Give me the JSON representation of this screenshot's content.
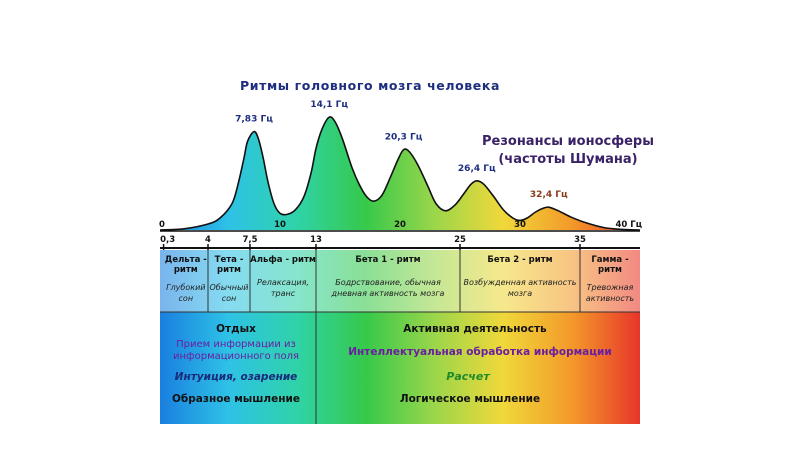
{
  "title": "Ритмы головного мозга человека",
  "schumann_label_line1": "Резонансы ионосферы",
  "schumann_label_line2": "(частоты Шумана)",
  "colors": {
    "spectrum": [
      "#1a7fe0",
      "#2ec2e6",
      "#2fd3a8",
      "#36c94a",
      "#9ad64a",
      "#f0d83a",
      "#f39a2a",
      "#e8352a"
    ],
    "peak_label": "#1f2f80",
    "last_peak_label": "#8a3b1a",
    "schumann_label": "#3a2266",
    "purple_text": "#6a1ea0",
    "green_text": "#1e8a2a"
  },
  "chart_data": {
    "type": "area",
    "title": "Ритмы головного мозга человека",
    "xlim": [
      0,
      40
    ],
    "x_axis_top": {
      "ticks": [
        0,
        10,
        20,
        30
      ],
      "end_label": "40 Гц"
    },
    "peaks": [
      {
        "freq": 7.83,
        "label": "7,83 Гц"
      },
      {
        "freq": 14.1,
        "label": "14,1 Гц"
      },
      {
        "freq": 20.3,
        "label": "20,3 Гц"
      },
      {
        "freq": 26.4,
        "label": "26,4 Гц"
      },
      {
        "freq": 32.4,
        "label": "32,4 Гц"
      }
    ],
    "curve": {
      "x": [
        0,
        2,
        4,
        5,
        6,
        6.5,
        7,
        7.3,
        7.83,
        8.2,
        8.6,
        9,
        9.5,
        10,
        10.6,
        11.3,
        12,
        12.6,
        13,
        13.5,
        14.1,
        14.6,
        15.2,
        16,
        16.6,
        17.2,
        17.8,
        18.5,
        19.2,
        19.8,
        20.3,
        20.8,
        21.5,
        22.3,
        23,
        23.8,
        24.6,
        25.3,
        25.9,
        26.4,
        27,
        27.8,
        28.6,
        29.4,
        30,
        30.6,
        31.3,
        31.9,
        32.4,
        33.2,
        34.2,
        35.5,
        37,
        38.5,
        40
      ],
      "y": [
        0,
        0.01,
        0.05,
        0.1,
        0.22,
        0.38,
        0.6,
        0.74,
        0.82,
        0.76,
        0.6,
        0.4,
        0.22,
        0.14,
        0.13,
        0.17,
        0.28,
        0.48,
        0.68,
        0.84,
        0.94,
        0.9,
        0.76,
        0.52,
        0.38,
        0.28,
        0.24,
        0.29,
        0.44,
        0.58,
        0.67,
        0.65,
        0.54,
        0.37,
        0.22,
        0.16,
        0.21,
        0.3,
        0.38,
        0.41,
        0.38,
        0.28,
        0.17,
        0.1,
        0.08,
        0.1,
        0.15,
        0.18,
        0.19,
        0.16,
        0.11,
        0.06,
        0.02,
        0.005,
        0
      ]
    },
    "band_boundaries": [
      0.3,
      4,
      7.5,
      13,
      25,
      35
    ],
    "bands": [
      {
        "from": 0.3,
        "to": 4,
        "name": "Дельта - ритм",
        "desc": "Глубокий сон"
      },
      {
        "from": 4,
        "to": 7.5,
        "name": "Тета - ритм",
        "desc": "Обычный сон"
      },
      {
        "from": 7.5,
        "to": 13,
        "name": "Альфа - ритм",
        "desc": "Релаксация, транс"
      },
      {
        "from": 13,
        "to": 25,
        "name": "Бета 1 - ритм",
        "desc": "Бодрствование, обычная дневная активность мозга"
      },
      {
        "from": 25,
        "to": 35,
        "name": "Бета 2 - ритм",
        "desc": "Возбужденная активность мозга"
      },
      {
        "from": 35,
        "to": 40,
        "name": "Гамма - ритм",
        "desc": "Тревожная активность"
      }
    ],
    "bottom_axis_labels": [
      "0,3",
      "4",
      "7,5",
      "13",
      "25",
      "35"
    ]
  },
  "activity": {
    "rest": {
      "heading": "Отдых",
      "line1": "Прием информации из",
      "line2": "информационного поля",
      "intuition": "Интуиция, озарение",
      "thinking": "Образное мышление"
    },
    "active": {
      "heading": "Активная деятельность",
      "processing": "Интеллектуальная обработка информации",
      "calculation": "Расчет",
      "thinking": "Логическое мышление"
    }
  }
}
